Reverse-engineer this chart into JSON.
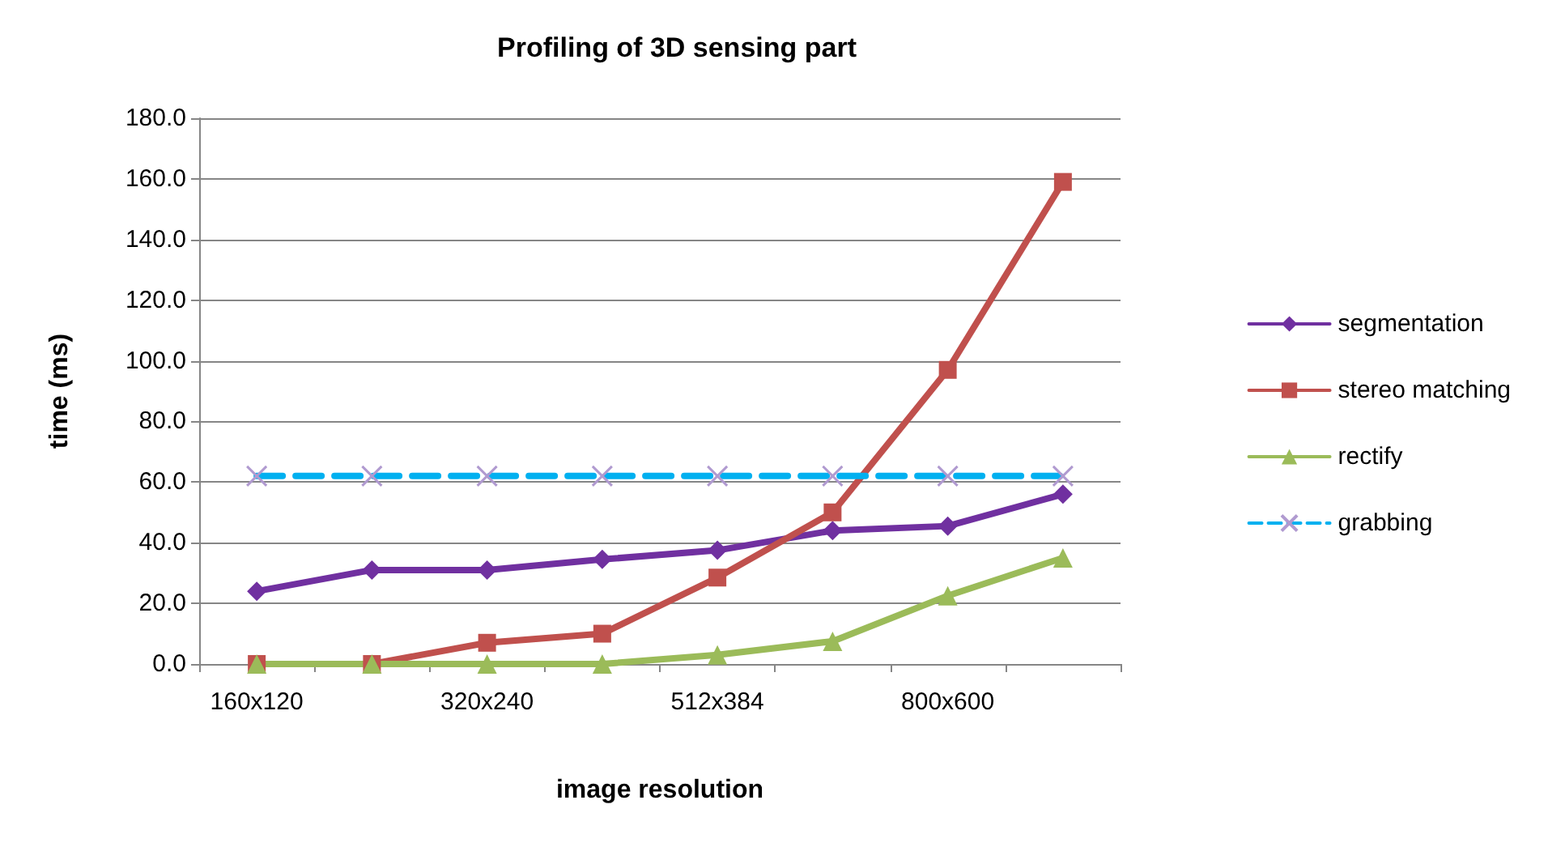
{
  "chart_data": {
    "type": "line",
    "title": "Profiling of 3D sensing part",
    "xlabel": "image resolution",
    "ylabel": "time (ms)",
    "categories": [
      "160x120",
      null,
      "320x240",
      null,
      "512x384",
      null,
      "800x600",
      null
    ],
    "series": [
      {
        "name": "segmentation",
        "color": "#7030a0",
        "marker": "diamond",
        "values": [
          24,
          31,
          31,
          34.5,
          37.5,
          44,
          45.5,
          56
        ]
      },
      {
        "name": "stereo matching",
        "color": "#c0504d",
        "marker": "square",
        "values": [
          0,
          0,
          7,
          10,
          28.5,
          50,
          97,
          159
        ]
      },
      {
        "name": "rectify",
        "color": "#9bbb59",
        "marker": "triangle",
        "values": [
          0,
          0,
          0,
          0,
          3,
          7.5,
          22.5,
          35
        ]
      },
      {
        "name": "grabbing",
        "color": "#00b0f0",
        "marker": "cross",
        "line_style": "dashed",
        "values": [
          62,
          62,
          62,
          62,
          62,
          62,
          62,
          62
        ]
      }
    ],
    "ylim": [
      0,
      180
    ],
    "yticks": [
      {
        "value": 0,
        "label": "0.0"
      },
      {
        "value": 20,
        "label": "20.0"
      },
      {
        "value": 40,
        "label": "40.0"
      },
      {
        "value": 60,
        "label": "60.0"
      },
      {
        "value": 80,
        "label": "80.0"
      },
      {
        "value": 100,
        "label": "100.0"
      },
      {
        "value": 120,
        "label": "120.0"
      },
      {
        "value": 140,
        "label": "140.0"
      },
      {
        "value": 160,
        "label": "160.0"
      },
      {
        "value": 180,
        "label": "180.0"
      }
    ],
    "grid": "y",
    "legend": "right"
  }
}
